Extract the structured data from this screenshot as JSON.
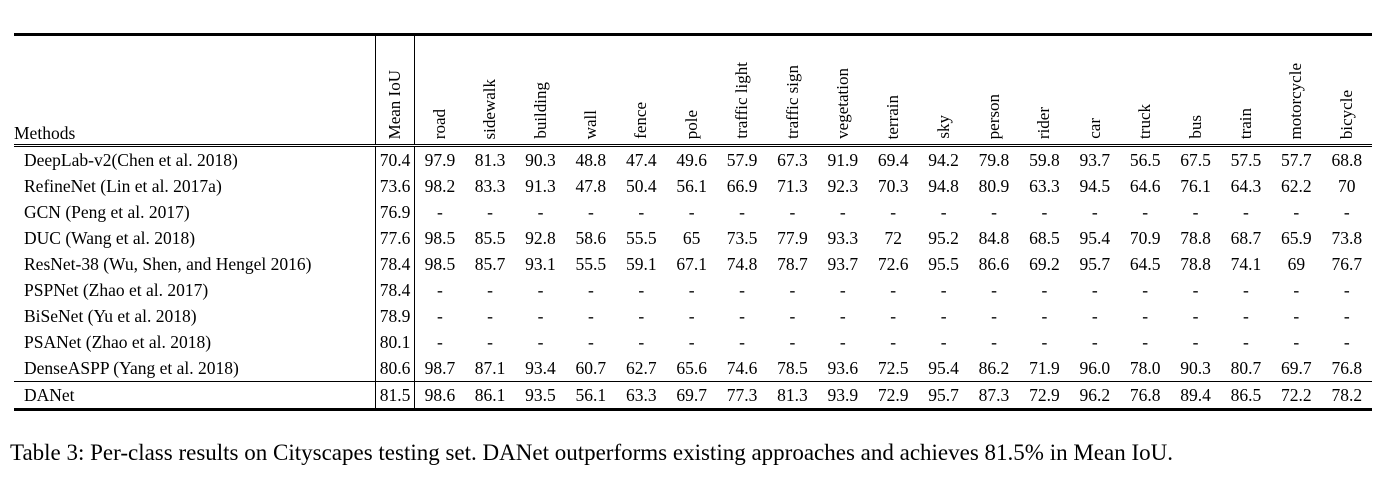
{
  "table": {
    "methods_header": "Methods",
    "columns": [
      "Mean IoU",
      "road",
      "sidewalk",
      "building",
      "wall",
      "fence",
      "pole",
      "traffic light",
      "traffic sign",
      "vegetation",
      "terrain",
      "sky",
      "person",
      "rider",
      "car",
      "truck",
      "bus",
      "train",
      "motorcycle",
      "bicycle"
    ],
    "rows": [
      {
        "method": "DeepLab-v2(Chen et al. 2018)",
        "values": [
          "70.4",
          "97.9",
          "81.3",
          "90.3",
          "48.8",
          "47.4",
          "49.6",
          "57.9",
          "67.3",
          "91.9",
          "69.4",
          "94.2",
          "79.8",
          "59.8",
          "93.7",
          "56.5",
          "67.5",
          "57.5",
          "57.7",
          "68.8"
        ],
        "bold": []
      },
      {
        "method": "RefineNet (Lin et al. 2017a)",
        "values": [
          "73.6",
          "98.2",
          "83.3",
          "91.3",
          "47.8",
          "50.4",
          "56.1",
          "66.9",
          "71.3",
          "92.3",
          "70.3",
          "94.8",
          "80.9",
          "63.3",
          "94.5",
          "64.6",
          "76.1",
          "64.3",
          "62.2",
          "70"
        ],
        "bold": []
      },
      {
        "method": "GCN (Peng et al. 2017)",
        "values": [
          "76.9",
          "-",
          "-",
          "-",
          "-",
          "-",
          "-",
          "-",
          "-",
          "-",
          "-",
          "-",
          "-",
          "-",
          "-",
          "-",
          "-",
          "-",
          "-",
          "-"
        ],
        "bold": []
      },
      {
        "method": "DUC (Wang et al. 2018)",
        "values": [
          "77.6",
          "98.5",
          "85.5",
          "92.8",
          "58.6",
          "55.5",
          "65",
          "73.5",
          "77.9",
          "93.3",
          "72",
          "95.2",
          "84.8",
          "68.5",
          "95.4",
          "70.9",
          "78.8",
          "68.7",
          "65.9",
          "73.8"
        ],
        "bold": []
      },
      {
        "method": "ResNet-38 (Wu, Shen, and Hengel 2016)",
        "values": [
          "78.4",
          "98.5",
          "85.7",
          "93.1",
          "55.5",
          "59.1",
          "67.1",
          "74.8",
          "78.7",
          "93.7",
          "72.6",
          "95.5",
          "86.6",
          "69.2",
          "95.7",
          "64.5",
          "78.8",
          "74.1",
          "69",
          "76.7"
        ],
        "bold": []
      },
      {
        "method": "PSPNet (Zhao et al. 2017)",
        "values": [
          "78.4",
          "-",
          "-",
          "-",
          "-",
          "-",
          "-",
          "-",
          "-",
          "-",
          "-",
          "-",
          "-",
          "-",
          "-",
          "-",
          "-",
          "-",
          "-",
          "-"
        ],
        "bold": []
      },
      {
        "method": "BiSeNet (Yu et al. 2018)",
        "values": [
          "78.9",
          "-",
          "-",
          "-",
          "-",
          "-",
          "-",
          "-",
          "-",
          "-",
          "-",
          "-",
          "-",
          "-",
          "-",
          "-",
          "-",
          "-",
          "-",
          "-"
        ],
        "bold": []
      },
      {
        "method": "PSANet (Zhao et al. 2018)",
        "values": [
          "80.1",
          "-",
          "-",
          "-",
          "-",
          "-",
          "-",
          "-",
          "-",
          "-",
          "-",
          "-",
          "-",
          "-",
          "-",
          "-",
          "-",
          "-",
          "-",
          "-"
        ],
        "bold": []
      },
      {
        "method": "DenseASPP (Yang et al. 2018)",
        "values": [
          "80.6",
          "98.7",
          "87.1",
          "93.4",
          "60.7",
          "62.7",
          "65.6",
          "74.6",
          "78.5",
          "93.6",
          "72.5",
          "95.4",
          "86.2",
          "71.9",
          "96.0",
          "78.0",
          "90.3",
          "80.7",
          "69.7",
          "76.8"
        ],
        "bold": [
          1,
          2,
          4,
          15,
          16
        ]
      },
      {
        "method": "DANet",
        "values": [
          "81.5",
          "98.6",
          "86.1",
          "93.5",
          "56.1",
          "63.3",
          "69.7",
          "77.3",
          "81.3",
          "93.9",
          "72.9",
          "95.7",
          "87.3",
          "72.9",
          "96.2",
          "76.8",
          "89.4",
          "86.5",
          "72.2",
          "78.2"
        ],
        "bold": [
          0,
          3,
          5,
          6,
          7,
          8,
          9,
          10,
          11,
          12,
          13,
          14,
          17,
          18,
          19
        ]
      }
    ]
  },
  "caption": "Table 3: Per-class results on Cityscapes testing set. DANet outperforms existing approaches and achieves 81.5% in Mean IoU."
}
